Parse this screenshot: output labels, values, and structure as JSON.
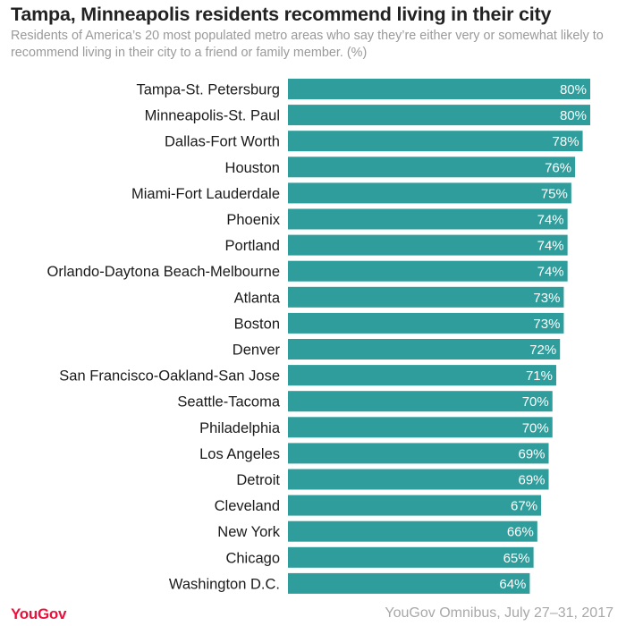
{
  "title": "Tampa, Minneapolis residents recommend living in their city",
  "subtitle": "Residents of America’s 20 most populated metro areas who say they’re either very or somewhat likely to recommend living in their city to a friend or family member. (%)",
  "footer": {
    "brand": "YouGov",
    "source": "YouGov Omnibus, July 27–31, 2017"
  },
  "chart_data": {
    "type": "bar",
    "orientation": "horizontal",
    "categories": [
      "Tampa-St. Petersburg",
      "Minneapolis-St. Paul",
      "Dallas-Fort Worth",
      "Houston",
      "Miami-Fort Lauderdale",
      "Phoenix",
      "Portland",
      "Orlando-Daytona Beach-Melbourne",
      "Atlanta",
      "Boston",
      "Denver",
      "San Francisco-Oakland-San Jose",
      "Seattle-Tacoma",
      "Philadelphia",
      "Los Angeles",
      "Detroit",
      "Cleveland",
      "New York",
      "Chicago",
      "Washington D.C."
    ],
    "values": [
      80,
      80,
      78,
      76,
      75,
      74,
      74,
      74,
      73,
      73,
      72,
      71,
      70,
      70,
      69,
      69,
      67,
      66,
      65,
      64
    ],
    "value_labels": [
      "80%",
      "80%",
      "78%",
      "76%",
      "75%",
      "74%",
      "74%",
      "74%",
      "73%",
      "73%",
      "72%",
      "71%",
      "70%",
      "70%",
      "69%",
      "69%",
      "67%",
      "66%",
      "65%",
      "64%"
    ],
    "xlim": [
      0,
      80
    ],
    "grid": false,
    "bar_color": "#2e9d9b",
    "label_color": "#ffffff"
  }
}
